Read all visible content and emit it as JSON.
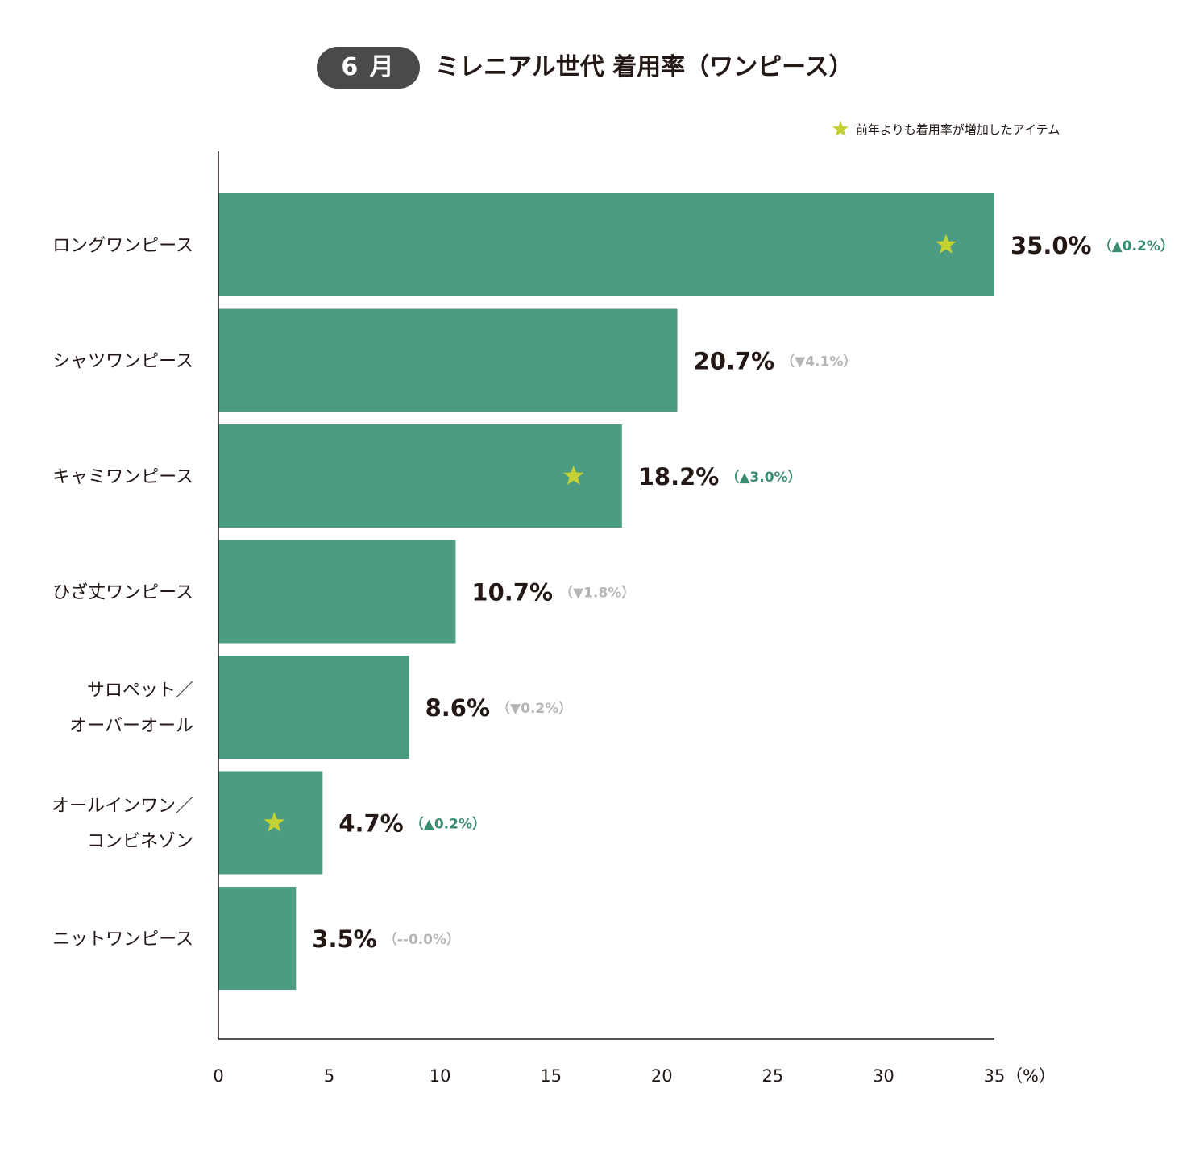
{
  "header": {
    "month_badge": "6 月",
    "title": "ミレニアル世代 着用率（ワンピース）"
  },
  "legend": {
    "star_note": "前年よりも着用率が増加したアイテム",
    "star_icon": "star-icon",
    "star_color": "#c3d133"
  },
  "colors": {
    "bar": "#4c9b83",
    "up": "#3a8d6e",
    "down": "#b5b5b5",
    "axis": "#231815"
  },
  "chart_data": {
    "type": "bar",
    "orientation": "horizontal",
    "unit_label": "（%）",
    "xlim": [
      0,
      35
    ],
    "xticks": [
      0,
      5,
      10,
      15,
      20,
      25,
      30,
      35
    ],
    "grid": false,
    "categories": [
      [
        "ロングワンピース"
      ],
      [
        "シャツワンピース"
      ],
      [
        "キャミワンピース"
      ],
      [
        "ひざ丈ワンピース"
      ],
      [
        "サロペット／",
        "オーバーオール"
      ],
      [
        "オールインワン／",
        "コンビネゾン"
      ],
      [
        "ニットワンピース"
      ]
    ],
    "values": [
      35.0,
      20.7,
      18.2,
      10.7,
      8.6,
      4.7,
      3.5
    ],
    "value_labels": [
      "35.0%",
      "20.7%",
      "18.2%",
      "10.7%",
      "8.6%",
      "4.7%",
      "3.5%"
    ],
    "change_labels": [
      "（▲0.2%）",
      "（▼4.1%）",
      "（▲3.0%）",
      "（▼1.8%）",
      "（▼0.2%）",
      "（▲0.2%）",
      "（--0.0%）"
    ],
    "change_direction": [
      "up",
      "down",
      "up",
      "down",
      "down",
      "up",
      "flat"
    ],
    "star": [
      true,
      false,
      true,
      false,
      false,
      true,
      false
    ]
  }
}
